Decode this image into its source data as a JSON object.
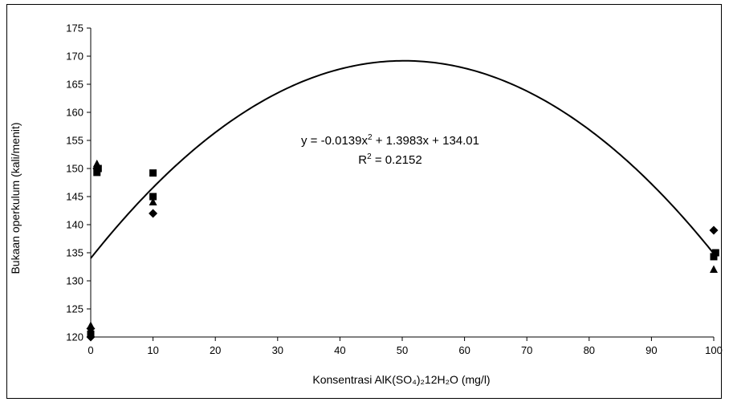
{
  "chart_data": {
    "type": "scatter",
    "title": "",
    "xlabel": "Konsentrasi AlK(SO₄)₂12H₂O (mg/l)",
    "ylabel": "Bukaan operkulum (kali/menit)",
    "xlim": [
      0,
      100
    ],
    "ylim": [
      120,
      175
    ],
    "x_ticks": [
      0,
      10,
      20,
      30,
      40,
      50,
      60,
      70,
      80,
      90,
      100
    ],
    "y_ticks": [
      120,
      125,
      130,
      135,
      140,
      145,
      150,
      155,
      160,
      165,
      170,
      175
    ],
    "grid": false,
    "legend": "none",
    "series": [
      {
        "marker": "diamond",
        "points": [
          {
            "x": 0,
            "y": 120
          },
          {
            "x": 0,
            "y": 121.5
          },
          {
            "x": 1,
            "y": 150
          },
          {
            "x": 10,
            "y": 142
          },
          {
            "x": 100,
            "y": 139
          }
        ]
      },
      {
        "marker": "square",
        "points": [
          {
            "x": 0,
            "y": 120.5
          },
          {
            "x": 1,
            "y": 149.3
          },
          {
            "x": 1.2,
            "y": 150
          },
          {
            "x": 10,
            "y": 149.2
          },
          {
            "x": 10,
            "y": 145
          },
          {
            "x": 100,
            "y": 134.3
          },
          {
            "x": 100.3,
            "y": 135
          }
        ]
      },
      {
        "marker": "triangle",
        "points": [
          {
            "x": 0,
            "y": 122
          },
          {
            "x": 1,
            "y": 150.8
          },
          {
            "x": 10,
            "y": 144
          },
          {
            "x": 100,
            "y": 132
          }
        ]
      }
    ],
    "trendline": {
      "type": "polynomial",
      "coefficients": [
        -0.0139,
        1.3983,
        134.01
      ],
      "x_range": [
        0,
        100
      ],
      "equation_prefix": "y = -0.0139x",
      "equation_exp": "2",
      "equation_suffix": " + 1.3983x + 134.01",
      "r2_prefix": "R",
      "r2_exp": "2",
      "r2_suffix": " = 0.2152"
    }
  }
}
